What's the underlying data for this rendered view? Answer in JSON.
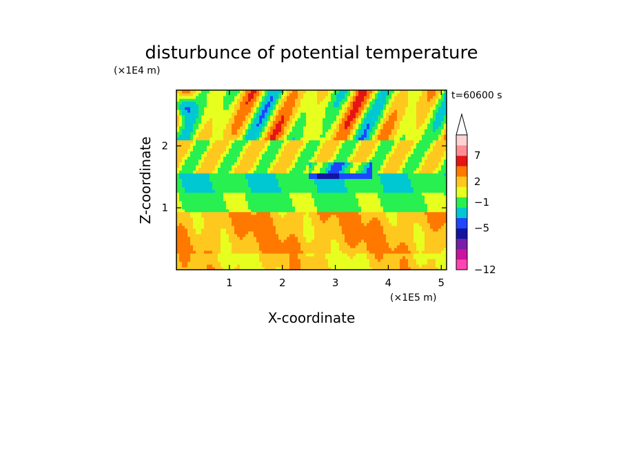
{
  "chart_data": {
    "type": "heatmap",
    "title": "disturbunce of potential temperature",
    "xlabel": "X-coordinate",
    "ylabel": "Z-coordinate",
    "x_unit": "(×1E5 m)",
    "y_unit": "(×1E4 m)",
    "time_label": "t=60600 s",
    "xlim": [
      0,
      5.1
    ],
    "ylim": [
      0,
      2.9
    ],
    "x_ticks": [
      1,
      2,
      3,
      4,
      5
    ],
    "y_ticks": [
      1,
      2
    ],
    "colorbar": {
      "levels": [
        {
          "color": "#ff44b4"
        },
        {
          "color": "#c8149e"
        },
        {
          "color": "#781ea8"
        },
        {
          "color": "#1414a0"
        },
        {
          "color": "#1e46ff"
        },
        {
          "color": "#00c8d2"
        },
        {
          "color": "#28f050"
        },
        {
          "color": "#e6ff1e"
        },
        {
          "color": "#ffc81e"
        },
        {
          "color": "#ff7800"
        },
        {
          "color": "#e61414"
        },
        {
          "color": "#ff8c96"
        },
        {
          "color": "#ffd2d2"
        }
      ],
      "tick_labels": [
        {
          "label": "-12",
          "boundary": 0
        },
        {
          "label": "-5",
          "boundary": 4
        },
        {
          "label": "-1",
          "boundary": 6.5
        },
        {
          "label": "2",
          "boundary": 8.5
        },
        {
          "label": "7",
          "boundary": 11
        }
      ],
      "extend": "max"
    },
    "field_bands": [
      {
        "z_range": [
          0.0,
          0.25
        ],
        "dominant": "yellow",
        "level": 8
      },
      {
        "z_range": [
          0.25,
          0.95
        ],
        "dominant": "yellow-orange",
        "level": 8.5
      },
      {
        "z_range": [
          0.95,
          1.55
        ],
        "dominant": "green",
        "level": 6
      },
      {
        "z_range": [
          1.25,
          1.55
        ],
        "dominant": "cyan",
        "level": 5.4
      },
      {
        "z_range": [
          1.55,
          2.2
        ],
        "dominant": "green-yellow-orange",
        "level": 7
      },
      {
        "z_range": [
          2.2,
          2.9
        ],
        "dominant": "orange-blue-alternating",
        "level": 7
      }
    ]
  }
}
